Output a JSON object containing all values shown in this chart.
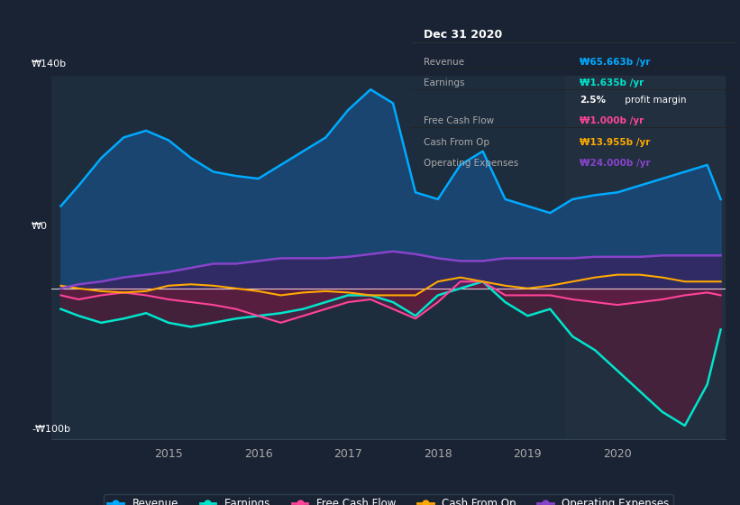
{
  "bg_color": "#1a2333",
  "chart_bg": "#1e2d3d",
  "overlay_bg": "#243040",
  "title": "Dec 31 2020",
  "ylabel_top": "₩140b",
  "ylabel_zero": "₩0",
  "ylabel_bottom": "-₩100b",
  "yticks": [
    140,
    0,
    -100
  ],
  "xlim_start": 2013.7,
  "xlim_end": 2021.2,
  "ylim": [
    -110,
    155
  ],
  "overlay_start": 2019.42,
  "revenue_color": "#00aaff",
  "revenue_fill": "#1a4a7a",
  "earnings_color": "#00e5cc",
  "earnings_fill": "#1a4040",
  "earnings_neg_fill": "#5c1a3a",
  "fcf_color": "#ff4499",
  "cashop_color": "#ffaa00",
  "opex_color": "#8844cc",
  "opex_fill": "#3a2060",
  "legend_items": [
    "Revenue",
    "Earnings",
    "Free Cash Flow",
    "Cash From Op",
    "Operating Expenses"
  ],
  "legend_colors": [
    "#00aaff",
    "#00e5cc",
    "#ff4499",
    "#ffaa00",
    "#8844cc"
  ],
  "info_box": {
    "title": "Dec 31 2020",
    "rows": [
      {
        "label": "Revenue",
        "value": "₩65.663b /yr",
        "value_color": "#00aaff"
      },
      {
        "label": "Earnings",
        "value": "₩1.635b /yr",
        "value_color": "#00e5cc"
      },
      {
        "label2": "2.5% profit margin",
        "label2_color": "#ffffff"
      },
      {
        "label": "Free Cash Flow",
        "value": "₩1.000b /yr",
        "value_color": "#ff4499"
      },
      {
        "label": "Cash From Op",
        "value": "₩13.955b /yr",
        "value_color": "#ffaa00"
      },
      {
        "label": "Operating Expenses",
        "value": "₩24.000b /yr",
        "value_color": "#8844cc"
      }
    ]
  },
  "x_years": [
    2013.8,
    2014.0,
    2014.25,
    2014.5,
    2014.75,
    2015.0,
    2015.25,
    2015.5,
    2015.75,
    2016.0,
    2016.25,
    2016.5,
    2016.75,
    2017.0,
    2017.25,
    2017.5,
    2017.75,
    2018.0,
    2018.25,
    2018.5,
    2018.75,
    2019.0,
    2019.25,
    2019.5,
    2019.75,
    2020.0,
    2020.25,
    2020.5,
    2020.75,
    2021.0,
    2021.15
  ],
  "revenue": [
    60,
    75,
    95,
    110,
    115,
    108,
    95,
    85,
    82,
    80,
    90,
    100,
    110,
    130,
    145,
    135,
    70,
    65,
    90,
    100,
    65,
    60,
    55,
    65,
    68,
    70,
    75,
    80,
    85,
    90,
    65
  ],
  "earnings": [
    -15,
    -20,
    -25,
    -22,
    -18,
    -25,
    -28,
    -25,
    -22,
    -20,
    -18,
    -15,
    -10,
    -5,
    -5,
    -10,
    -20,
    -5,
    0,
    5,
    -10,
    -20,
    -15,
    -35,
    -45,
    -60,
    -75,
    -90,
    -100,
    -70,
    -30
  ],
  "fcf": [
    -5,
    -8,
    -5,
    -3,
    -5,
    -8,
    -10,
    -12,
    -15,
    -20,
    -25,
    -20,
    -15,
    -10,
    -8,
    -15,
    -22,
    -10,
    5,
    5,
    -5,
    -5,
    -5,
    -8,
    -10,
    -12,
    -10,
    -8,
    -5,
    -3,
    -5
  ],
  "cashop": [
    2,
    0,
    -2,
    -3,
    -2,
    2,
    3,
    2,
    0,
    -2,
    -5,
    -3,
    -2,
    -3,
    -5,
    -5,
    -5,
    5,
    8,
    5,
    2,
    0,
    2,
    5,
    8,
    10,
    10,
    8,
    5,
    5,
    5
  ],
  "opex": [
    0,
    3,
    5,
    8,
    10,
    12,
    15,
    18,
    18,
    20,
    22,
    22,
    22,
    23,
    25,
    27,
    25,
    22,
    20,
    20,
    22,
    22,
    22,
    22,
    23,
    23,
    23,
    24,
    24,
    24,
    24
  ]
}
